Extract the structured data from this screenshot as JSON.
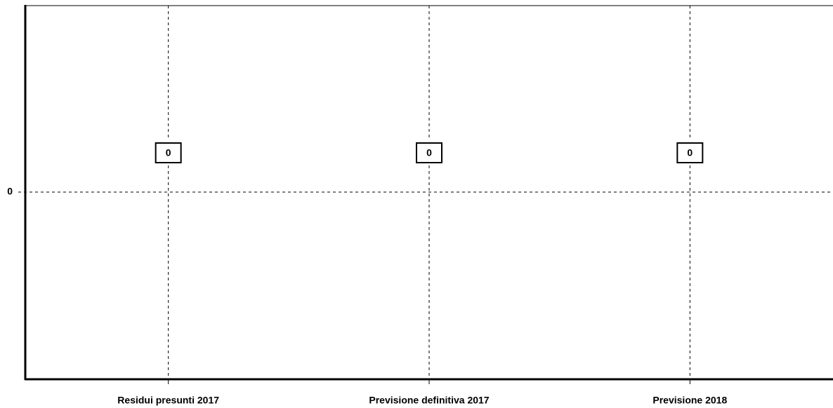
{
  "chart_data": {
    "type": "bar",
    "categories": [
      "Residui presunti 2017",
      "Previsione definitiva 2017",
      "Previsione 2018"
    ],
    "values": [
      0,
      0,
      0
    ],
    "color": "#000000",
    "ylim": [
      -1,
      1
    ],
    "yticks": [
      0
    ],
    "grid": true
  }
}
